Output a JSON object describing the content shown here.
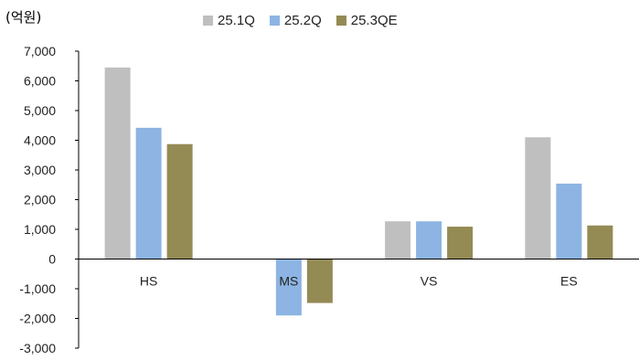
{
  "chart_data": {
    "type": "bar",
    "unit_label": "(억원)",
    "categories": [
      "HS",
      "MS",
      "VS",
      "ES"
    ],
    "series": [
      {
        "name": "25.1Q",
        "color": "#bfbfbf",
        "values": [
          6450,
          0,
          1270,
          4100
        ]
      },
      {
        "name": "25.2Q",
        "color": "#8db4e2",
        "values": [
          4420,
          -1900,
          1270,
          2540
        ]
      },
      {
        "name": "25.3QE",
        "color": "#948a54",
        "values": [
          3870,
          -1480,
          1090,
          1130
        ]
      }
    ],
    "ylim": [
      -3000,
      7000
    ],
    "yticks": [
      "7,000",
      "6,000",
      "5,000",
      "4,000",
      "3,000",
      "2,000",
      "1,000",
      "0",
      "-1,000",
      "-2,000",
      "-3,000"
    ],
    "ytick_values": [
      7000,
      6000,
      5000,
      4000,
      3000,
      2000,
      1000,
      0,
      -1000,
      -2000,
      -3000
    ],
    "legend_position": "top",
    "grid": false
  }
}
